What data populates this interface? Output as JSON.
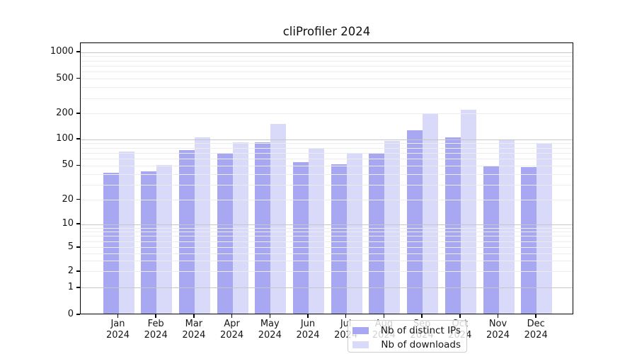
{
  "chart_data": {
    "type": "bar",
    "title": "cliProfiler 2024",
    "categories": [
      "Jan 2024",
      "Feb 2024",
      "Mar 2024",
      "Apr 2024",
      "May 2024",
      "Jun 2024",
      "Jul 2024",
      "Aug 2024",
      "Sep 2024",
      "Oct 2024",
      "Nov 2024",
      "Dec 2024"
    ],
    "series": [
      {
        "name": "Nb of distinct IPs",
        "color": "#a8a8f2",
        "values": [
          42,
          43,
          75,
          70,
          92,
          55,
          52,
          69,
          128,
          105,
          50,
          48
        ]
      },
      {
        "name": "Nb of downloads",
        "color": "#d9d9f9",
        "values": [
          73,
          51,
          105,
          93,
          154,
          80,
          69,
          97,
          200,
          222,
          100,
          89
        ]
      }
    ],
    "xlabel": "",
    "ylabel": "",
    "yscale": "symlog",
    "yticks": [
      0,
      1,
      2,
      5,
      10,
      20,
      50,
      100,
      200,
      500,
      1000
    ],
    "ylim": [
      0,
      1270
    ],
    "grid": true,
    "grid_position": "above-bars",
    "legend_position": "lower center",
    "bar_style": "grouped-pairs"
  }
}
